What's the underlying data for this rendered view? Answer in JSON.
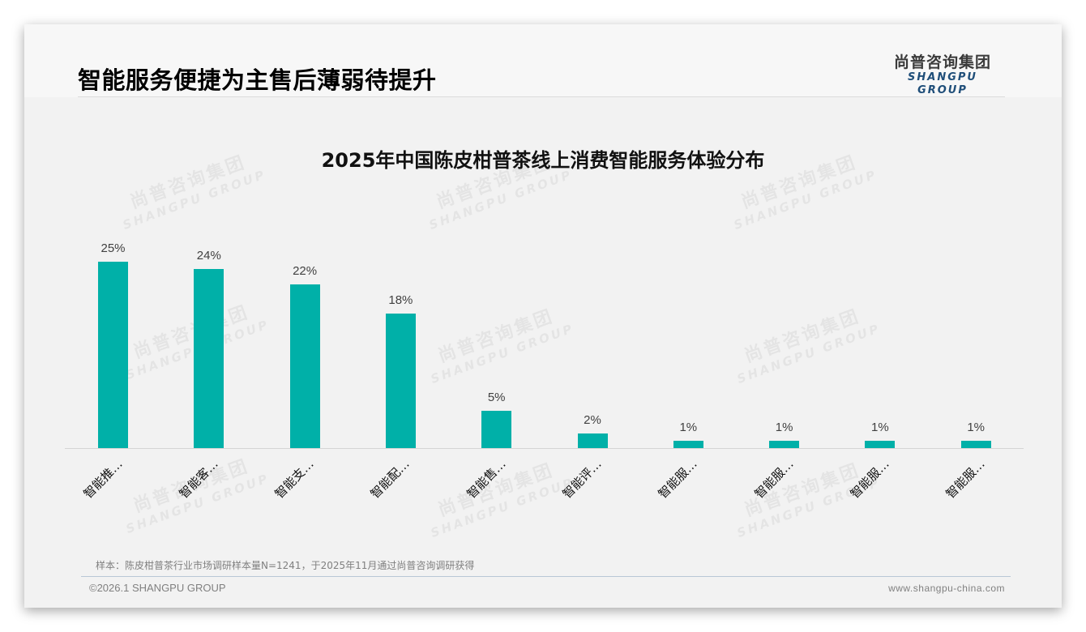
{
  "header": {
    "title": "智能服务便捷为主售后薄弱待提升",
    "logo_cn": "尚普咨询集团",
    "logo_en": "SHANGPU GROUP"
  },
  "watermark": {
    "cn": "尚普咨询集团",
    "en": "SHANGPU GROUP"
  },
  "chart": {
    "title": "2025年中国陈皮柑普茶线上消费智能服务体验分布",
    "bar_color": "#00b0a8",
    "categories": [
      "智能推…",
      "智能客…",
      "智能支…",
      "智能配…",
      "智能售…",
      "智能评…",
      "智能服…",
      "智能服…",
      "智能服…",
      "智能服…"
    ],
    "value_labels": [
      "25%",
      "24%",
      "22%",
      "18%",
      "5%",
      "2%",
      "1%",
      "1%",
      "1%",
      "1%"
    ]
  },
  "chart_data": {
    "type": "bar",
    "title": "2025年中国陈皮柑普茶线上消费智能服务体验分布",
    "categories": [
      "智能推…",
      "智能客…",
      "智能支…",
      "智能配…",
      "智能售…",
      "智能评…",
      "智能服…",
      "智能服…",
      "智能服…",
      "智能服…"
    ],
    "values": [
      25,
      24,
      22,
      18,
      5,
      2,
      1,
      1,
      1,
      1
    ],
    "unit": "%",
    "xlabel": "",
    "ylabel": "",
    "ylim": [
      0,
      25
    ],
    "grid": false,
    "legend": null,
    "data_labels": true,
    "color": "#00b0a8"
  },
  "footer": {
    "sample_note": "样本：陈皮柑普茶行业市场调研样本量N=1241，于2025年11月通过尚普咨询调研获得",
    "copyright": "©2026.1 SHANGPU GROUP",
    "website": "www.shangpu-china.com"
  }
}
